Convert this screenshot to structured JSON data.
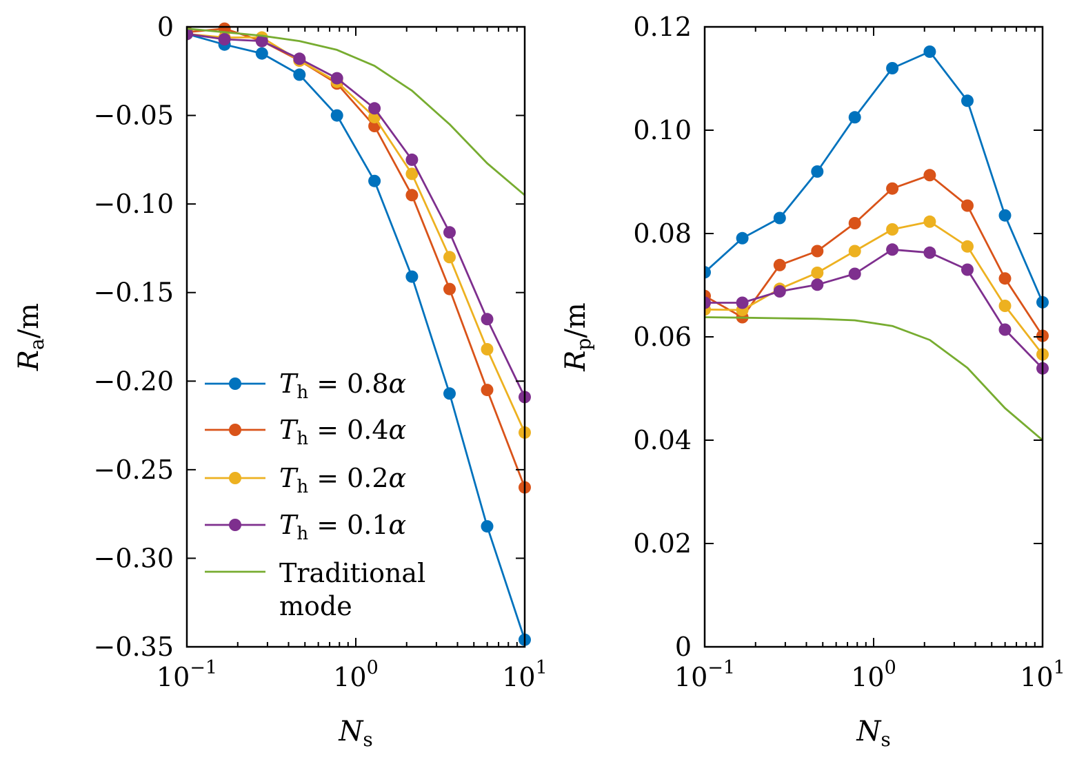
{
  "chart_data": [
    {
      "type": "line",
      "panel": "left",
      "xscale": "log",
      "xlim": [
        0.1,
        10
      ],
      "ylim": [
        -0.35,
        0
      ],
      "xlabel": "N",
      "xlabel_sub": "s",
      "ylabel": "R",
      "ylabel_sub": "a",
      "ylabel_unit": "/m",
      "xticks": [
        {
          "value": 0.1,
          "base": "10",
          "exp": "−1"
        },
        {
          "value": 1,
          "base": "10",
          "exp": "0"
        },
        {
          "value": 10,
          "base": "10",
          "exp": "1"
        }
      ],
      "yticks": [
        {
          "value": 0,
          "label": "0"
        },
        {
          "value": -0.05,
          "label": "−0.05"
        },
        {
          "value": -0.1,
          "label": "−0.10"
        },
        {
          "value": -0.15,
          "label": "−0.15"
        },
        {
          "value": -0.2,
          "label": "−0.20"
        },
        {
          "value": -0.25,
          "label": "−0.25"
        },
        {
          "value": -0.3,
          "label": "−0.30"
        },
        {
          "value": -0.35,
          "label": "−0.35"
        }
      ],
      "legend": "lower-left",
      "x": [
        0.1,
        0.167,
        0.278,
        0.464,
        0.774,
        1.29,
        2.15,
        3.59,
        5.99,
        10
      ],
      "series": [
        {
          "name": "T_h = 0.8α",
          "color": "#0072BD",
          "markers": true,
          "values": [
            -0.004,
            -0.01,
            -0.015,
            -0.027,
            -0.05,
            -0.087,
            -0.141,
            -0.207,
            -0.282,
            -0.346
          ]
        },
        {
          "name": "T_h = 0.4α",
          "color": "#D95319",
          "markers": true,
          "values": [
            -0.003,
            -0.001,
            -0.008,
            -0.019,
            -0.032,
            -0.056,
            -0.095,
            -0.148,
            -0.205,
            -0.26
          ]
        },
        {
          "name": "T_h = 0.2α",
          "color": "#EDB120",
          "markers": true,
          "values": [
            -0.004,
            -0.006,
            -0.006,
            -0.019,
            -0.031,
            -0.051,
            -0.083,
            -0.13,
            -0.182,
            -0.229
          ]
        },
        {
          "name": "T_h = 0.1α",
          "color": "#7E2F8E",
          "markers": true,
          "values": [
            -0.004,
            -0.007,
            -0.008,
            -0.018,
            -0.029,
            -0.046,
            -0.075,
            -0.116,
            -0.165,
            -0.209
          ]
        },
        {
          "name": "Traditional mode",
          "color": "#77AC30",
          "markers": false,
          "values": [
            -0.001,
            -0.003,
            -0.005,
            -0.008,
            -0.013,
            -0.022,
            -0.036,
            -0.055,
            -0.077,
            -0.095
          ]
        }
      ]
    },
    {
      "type": "line",
      "panel": "right",
      "xscale": "log",
      "xlim": [
        0.1,
        10
      ],
      "ylim": [
        0,
        0.12
      ],
      "xlabel": "N",
      "xlabel_sub": "s",
      "ylabel": "R",
      "ylabel_sub": "p",
      "ylabel_unit": "/m",
      "xticks": [
        {
          "value": 0.1,
          "base": "10",
          "exp": "−1"
        },
        {
          "value": 1,
          "base": "10",
          "exp": "0"
        },
        {
          "value": 10,
          "base": "10",
          "exp": "1"
        }
      ],
      "yticks": [
        {
          "value": 0,
          "label": "0"
        },
        {
          "value": 0.02,
          "label": "0.02"
        },
        {
          "value": 0.04,
          "label": "0.04"
        },
        {
          "value": 0.06,
          "label": "0.06"
        },
        {
          "value": 0.08,
          "label": "0.08"
        },
        {
          "value": 0.1,
          "label": "0.10"
        },
        {
          "value": 0.12,
          "label": "0.12"
        }
      ],
      "x": [
        0.1,
        0.167,
        0.278,
        0.464,
        0.774,
        1.29,
        2.15,
        3.59,
        5.99,
        10
      ],
      "series": [
        {
          "name": "T_h = 0.8α",
          "color": "#0072BD",
          "markers": true,
          "values": [
            0.0725,
            0.0791,
            0.083,
            0.092,
            0.1025,
            0.112,
            0.1152,
            0.1057,
            0.0835,
            0.0667
          ]
        },
        {
          "name": "T_h = 0.4α",
          "color": "#D95319",
          "markers": true,
          "values": [
            0.0679,
            0.0638,
            0.0739,
            0.0766,
            0.082,
            0.0887,
            0.0913,
            0.0854,
            0.0713,
            0.0602
          ]
        },
        {
          "name": "T_h = 0.2α",
          "color": "#EDB120",
          "markers": true,
          "values": [
            0.0653,
            0.0652,
            0.0693,
            0.0724,
            0.0766,
            0.0808,
            0.0823,
            0.0775,
            0.066,
            0.0566
          ]
        },
        {
          "name": "T_h = 0.1α",
          "color": "#7E2F8E",
          "markers": true,
          "values": [
            0.0666,
            0.0666,
            0.0688,
            0.0701,
            0.0722,
            0.0769,
            0.0763,
            0.073,
            0.0614,
            0.0539
          ]
        },
        {
          "name": "Traditional mode",
          "color": "#77AC30",
          "markers": false,
          "values": [
            0.0638,
            0.0637,
            0.0636,
            0.0635,
            0.0632,
            0.0621,
            0.0594,
            0.054,
            0.0462,
            0.04
          ]
        }
      ]
    }
  ],
  "legend": {
    "entries": [
      {
        "sym": "T",
        "sub": "h",
        "rest": " = 0.8",
        "greek": "α",
        "color": "#0072BD",
        "markers": true
      },
      {
        "sym": "T",
        "sub": "h",
        "rest": " = 0.4",
        "greek": "α",
        "color": "#D95319",
        "markers": true
      },
      {
        "sym": "T",
        "sub": "h",
        "rest": " = 0.2",
        "greek": "α",
        "color": "#EDB120",
        "markers": true
      },
      {
        "sym": "T",
        "sub": "h",
        "rest": " = 0.1",
        "greek": "α",
        "color": "#7E2F8E",
        "markers": true
      }
    ],
    "traditional": {
      "line1": "Traditional",
      "line2": "mode",
      "color": "#77AC30"
    }
  }
}
